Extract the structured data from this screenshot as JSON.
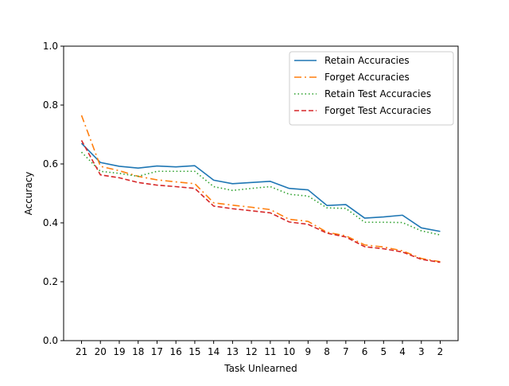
{
  "chart_data": {
    "type": "line",
    "title": "",
    "xlabel": "Task Unlearned",
    "ylabel": "Accuracy",
    "categories": [
      "21",
      "20",
      "19",
      "18",
      "17",
      "16",
      "15",
      "14",
      "13",
      "12",
      "11",
      "10",
      "9",
      "8",
      "7",
      "6",
      "5",
      "4",
      "3",
      "2"
    ],
    "ylim": [
      0.0,
      1.0
    ],
    "yticks": [
      "0.0",
      "0.2",
      "0.4",
      "0.6",
      "0.8",
      "1.0"
    ],
    "grid": false,
    "legend_position": "top-right",
    "series": [
      {
        "name": "Retain Accuracies",
        "color": "#1f77b4",
        "dash": "solid",
        "values": [
          0.67,
          0.605,
          0.592,
          0.586,
          0.593,
          0.59,
          0.594,
          0.545,
          0.533,
          0.537,
          0.541,
          0.517,
          0.512,
          0.459,
          0.462,
          0.416,
          0.42,
          0.426,
          0.383,
          0.371
        ]
      },
      {
        "name": "Forget Accuracies",
        "color": "#ff7f0e",
        "dash": "dashdot",
        "values": [
          0.765,
          0.592,
          0.577,
          0.558,
          0.546,
          0.539,
          0.533,
          0.468,
          0.46,
          0.453,
          0.445,
          0.412,
          0.405,
          0.368,
          0.356,
          0.325,
          0.318,
          0.305,
          0.279,
          0.268
        ]
      },
      {
        "name": "Retain Test Accuracies",
        "color": "#2ca02c",
        "dash": "dotted",
        "values": [
          0.64,
          0.575,
          0.568,
          0.558,
          0.575,
          0.575,
          0.575,
          0.523,
          0.51,
          0.517,
          0.523,
          0.497,
          0.491,
          0.451,
          0.449,
          0.402,
          0.402,
          0.401,
          0.373,
          0.359
        ]
      },
      {
        "name": "Forget Test Accuracies",
        "color": "#d62728",
        "dash": "dashed",
        "values": [
          0.68,
          0.563,
          0.553,
          0.537,
          0.528,
          0.523,
          0.517,
          0.457,
          0.448,
          0.441,
          0.434,
          0.403,
          0.395,
          0.365,
          0.352,
          0.319,
          0.312,
          0.301,
          0.276,
          0.266
        ]
      }
    ]
  }
}
